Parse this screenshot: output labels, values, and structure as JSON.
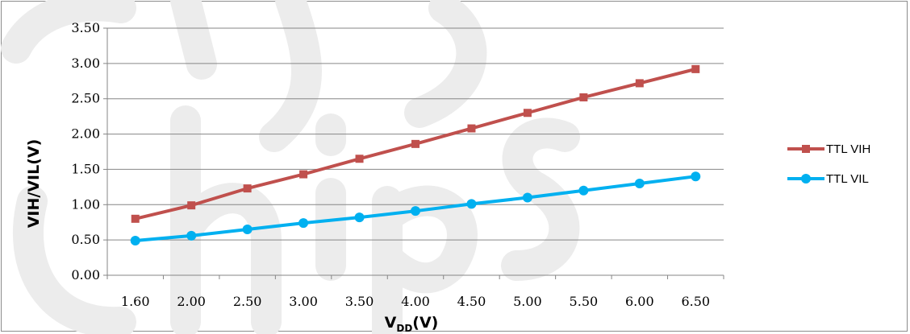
{
  "chart_data": {
    "type": "line",
    "title": "",
    "xlabel_main": "V",
    "xlabel_sub": "DD",
    "xlabel_unit": "(V)",
    "ylabel": "VIH/VIL(V)",
    "categories": [
      "1.60",
      "2.00",
      "2.50",
      "3.00",
      "3.50",
      "4.00",
      "4.50",
      "5.00",
      "5.50",
      "6.00",
      "6.50"
    ],
    "y_ticks": [
      "0.00",
      "0.50",
      "1.00",
      "1.50",
      "2.00",
      "2.50",
      "3.00",
      "3.50"
    ],
    "ylim": [
      0,
      3.5
    ],
    "grid": true,
    "legend_position": "right",
    "series": [
      {
        "name": "TTL VIH",
        "color": "#c0504d",
        "marker": "square",
        "values": [
          0.8,
          0.99,
          1.23,
          1.43,
          1.65,
          1.86,
          2.08,
          2.3,
          2.52,
          2.72,
          2.92
        ]
      },
      {
        "name": "TTL VIL",
        "color": "#00b0f0",
        "marker": "circle",
        "values": [
          0.49,
          0.56,
          0.65,
          0.74,
          0.82,
          0.91,
          1.01,
          1.1,
          1.2,
          1.3,
          1.4
        ]
      }
    ]
  }
}
